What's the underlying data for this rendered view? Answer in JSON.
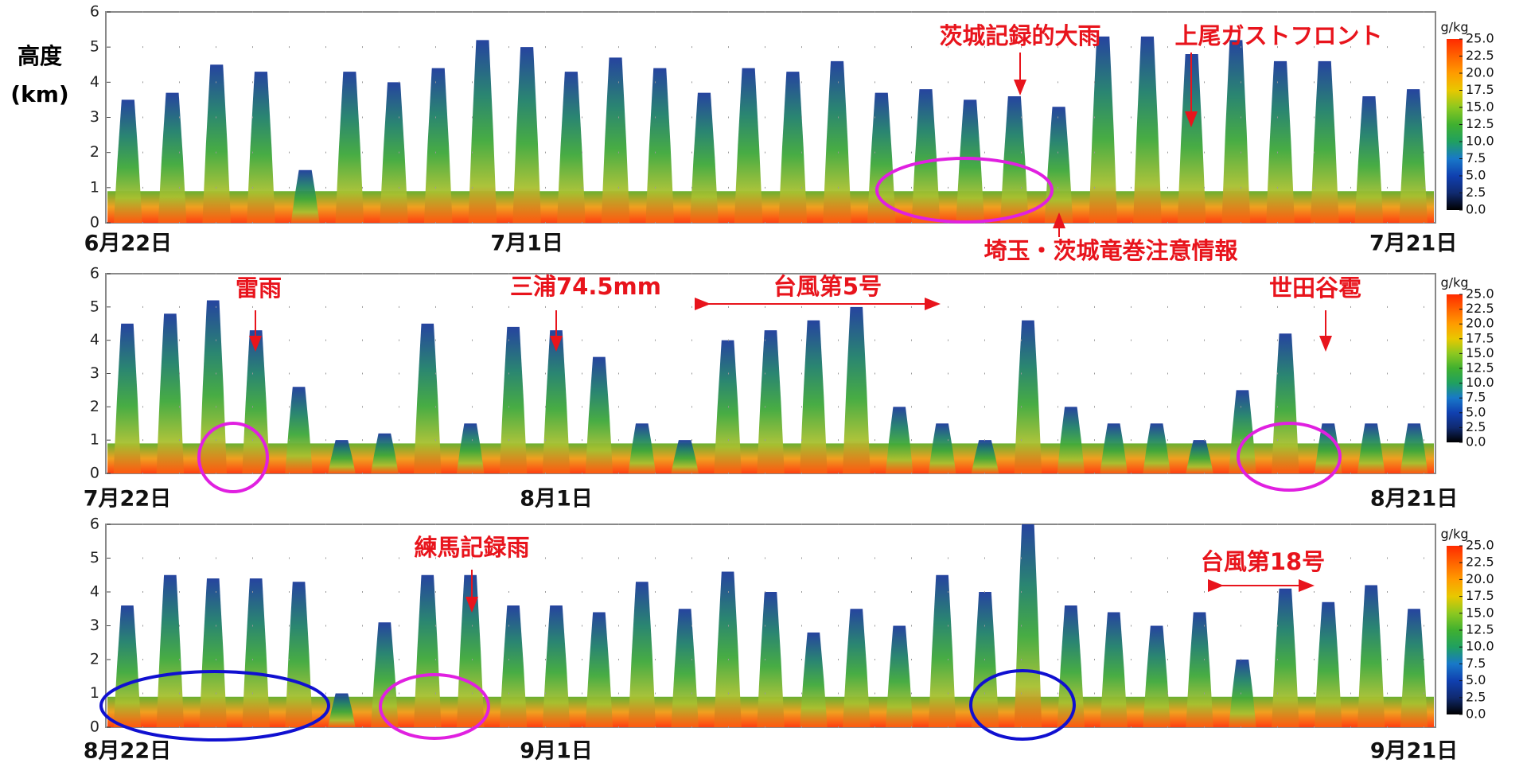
{
  "y_label": [
    "高度",
    "(km)"
  ],
  "chart_data": [
    {
      "type": "heatmap",
      "ylim": [
        0,
        6
      ],
      "yticks": [
        0,
        1,
        2,
        3,
        4,
        5,
        6
      ],
      "grid": true,
      "categories": [
        "6月22日",
        null,
        null,
        null,
        null,
        null,
        null,
        null,
        null,
        "7月1日",
        null,
        null,
        null,
        null,
        null,
        null,
        null,
        null,
        null,
        null,
        null,
        null,
        null,
        null,
        null,
        null,
        null,
        null,
        null,
        "7月21日"
      ],
      "values": [
        3.5,
        3.7,
        4.5,
        4.3,
        1.5,
        4.3,
        4.0,
        4.4,
        5.2,
        5.0,
        4.3,
        4.7,
        4.4,
        3.7,
        4.4,
        4.3,
        4.6,
        3.7,
        3.8,
        3.5,
        3.6,
        3.3,
        5.3,
        5.3,
        4.8,
        5.2,
        4.6,
        4.6,
        3.6,
        3.8
      ],
      "annotations": [
        "茨城記録的大雨",
        "上尾ガストフロント",
        "埼玉・茨城竜巻注意情報"
      ],
      "colorbar": {
        "label": "g/kg",
        "colors": [
          "#000000",
          "#102a70",
          "#1040b0",
          "#1878c8",
          "#20a060",
          "#40b030",
          "#8cc820",
          "#e8c800",
          "#ff9c00",
          "#ff6400",
          "#ff2a00"
        ],
        "ticks": [
          {
            "value": 0,
            "label": "0.0"
          },
          {
            "value": 2.5,
            "label": "2.5"
          },
          {
            "value": 5,
            "label": "5.0"
          },
          {
            "value": 7.5,
            "label": "7.5"
          },
          {
            "value": 10,
            "label": "10.0"
          },
          {
            "value": 12.5,
            "label": "12.5"
          },
          {
            "value": 15,
            "label": "15.0"
          },
          {
            "value": 17.5,
            "label": "17.5"
          },
          {
            "value": 20,
            "label": "20.0"
          },
          {
            "value": 22.5,
            "label": "22.5"
          },
          {
            "value": 25,
            "label": "25.0"
          }
        ]
      }
    },
    {
      "type": "heatmap",
      "ylim": [
        0,
        6
      ],
      "yticks": [
        0,
        1,
        2,
        3,
        4,
        5,
        6
      ],
      "grid": true,
      "categories": [
        "7月22日",
        null,
        null,
        null,
        null,
        null,
        null,
        null,
        null,
        null,
        "8月1日",
        null,
        null,
        null,
        null,
        null,
        null,
        null,
        null,
        null,
        null,
        null,
        null,
        null,
        null,
        null,
        null,
        null,
        null,
        null,
        "8月21日"
      ],
      "values": [
        4.5,
        4.8,
        5.2,
        4.3,
        2.6,
        1.0,
        1.2,
        4.5,
        1.5,
        4.4,
        4.3,
        3.5,
        1.5,
        1.0,
        4.0,
        4.3,
        4.6,
        5.0,
        2.0,
        1.5,
        1.0,
        4.6,
        2.0,
        1.5,
        1.5,
        1.0,
        2.5,
        4.2,
        1.5,
        1.5,
        1.5
      ],
      "annotations": [
        "雷雨",
        "三浦74.5mm",
        "台風第5号",
        "世田谷雹"
      ],
      "colorbar": {
        "label": "g/kg",
        "colors": [
          "#000000",
          "#102a70",
          "#1040b0",
          "#1878c8",
          "#20a060",
          "#40b030",
          "#8cc820",
          "#e8c800",
          "#ff9c00",
          "#ff6400",
          "#ff2a00"
        ],
        "ticks": [
          {
            "value": 0,
            "label": "0.0"
          },
          {
            "value": 2.5,
            "label": "2.5"
          },
          {
            "value": 5,
            "label": "5.0"
          },
          {
            "value": 7.5,
            "label": "7.5"
          },
          {
            "value": 10,
            "label": "10.0"
          },
          {
            "value": 12.5,
            "label": "12.5"
          },
          {
            "value": 15,
            "label": "15.0"
          },
          {
            "value": 17.5,
            "label": "17.5"
          },
          {
            "value": 20,
            "label": "20.0"
          },
          {
            "value": 22.5,
            "label": "22.5"
          },
          {
            "value": 25,
            "label": "25.0"
          }
        ]
      }
    },
    {
      "type": "heatmap",
      "ylim": [
        0,
        6
      ],
      "yticks": [
        0,
        1,
        2,
        3,
        4,
        5,
        6
      ],
      "grid": true,
      "categories": [
        "8月22日",
        null,
        null,
        null,
        null,
        null,
        null,
        null,
        null,
        null,
        "9月1日",
        null,
        null,
        null,
        null,
        null,
        null,
        null,
        null,
        null,
        null,
        null,
        null,
        null,
        null,
        null,
        null,
        null,
        null,
        null,
        "9月21日"
      ],
      "values": [
        3.6,
        4.5,
        4.4,
        4.4,
        4.3,
        1.0,
        3.1,
        4.5,
        4.5,
        3.6,
        3.6,
        3.4,
        4.3,
        3.5,
        4.6,
        4.0,
        2.8,
        3.5,
        3.0,
        4.5,
        4.0,
        6.0,
        3.6,
        3.4,
        3.0,
        3.4,
        2.0,
        4.1,
        3.7,
        4.2,
        3.5
      ],
      "annotations": [
        "練馬記録雨",
        "台風第18号"
      ],
      "colorbar": {
        "label": "g/kg",
        "colors": [
          "#000000",
          "#102a70",
          "#1040b0",
          "#1878c8",
          "#20a060",
          "#40b030",
          "#8cc820",
          "#e8c800",
          "#ff9c00",
          "#ff6400",
          "#ff2a00"
        ],
        "ticks": [
          {
            "value": 0,
            "label": "0.0"
          },
          {
            "value": 2.5,
            "label": "2.5"
          },
          {
            "value": 5,
            "label": "5.0"
          },
          {
            "value": 7.5,
            "label": "7.5"
          },
          {
            "value": 10,
            "label": "10.0"
          },
          {
            "value": 12.5,
            "label": "12.5"
          },
          {
            "value": 15,
            "label": "15.0"
          },
          {
            "value": 17.5,
            "label": "17.5"
          },
          {
            "value": 20,
            "label": "20.0"
          },
          {
            "value": 22.5,
            "label": "22.5"
          },
          {
            "value": 25,
            "label": "25.0"
          }
        ]
      }
    }
  ]
}
